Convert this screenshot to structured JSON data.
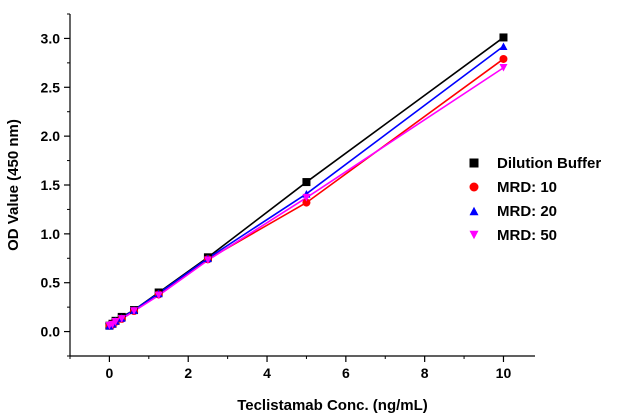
{
  "chart_data": {
    "type": "scatter",
    "title": "",
    "xlabel": "Teclistamab Conc. (ng/mL)",
    "ylabel": "OD Value (450 nm)",
    "xlim": [
      -1,
      10.8
    ],
    "ylim": [
      -0.25,
      3.25
    ],
    "xticks": [
      0,
      2,
      4,
      6,
      8,
      10
    ],
    "xtick_labels": [
      "0",
      "2",
      "4",
      "6",
      "8",
      "10"
    ],
    "yticks": [
      0.0,
      0.5,
      1.0,
      1.5,
      2.0,
      2.5,
      3.0
    ],
    "ytick_labels": [
      "0.0",
      "0.5",
      "1.0",
      "1.5",
      "2.0",
      "2.5",
      "3.0"
    ],
    "grid": false,
    "legend_position": "right",
    "series": [
      {
        "name": "Dilution Buffer",
        "marker": "square",
        "color": "#000000",
        "x": [
          0,
          0.078,
          0.156,
          0.3125,
          0.625,
          1.25,
          2.5,
          5,
          10
        ],
        "y": [
          0.06,
          0.08,
          0.11,
          0.15,
          0.22,
          0.4,
          0.76,
          1.53,
          3.01
        ]
      },
      {
        "name": "MRD: 10",
        "marker": "circle",
        "color": "#ff0000",
        "x": [
          0,
          0.078,
          0.156,
          0.3125,
          0.625,
          1.25,
          2.5,
          5,
          10
        ],
        "y": [
          0.06,
          0.07,
          0.1,
          0.13,
          0.21,
          0.38,
          0.74,
          1.32,
          2.79
        ]
      },
      {
        "name": "MRD: 20",
        "marker": "triangle-up",
        "color": "#0000ff",
        "x": [
          0,
          0.078,
          0.156,
          0.3125,
          0.625,
          1.25,
          2.5,
          5,
          10
        ],
        "y": [
          0.06,
          0.08,
          0.11,
          0.14,
          0.22,
          0.39,
          0.75,
          1.41,
          2.92
        ]
      },
      {
        "name": "MRD: 50",
        "marker": "triangle-down",
        "color": "#ff00ff",
        "x": [
          0,
          0.078,
          0.156,
          0.3125,
          0.625,
          1.25,
          2.5,
          5,
          10
        ],
        "y": [
          0.06,
          0.07,
          0.1,
          0.13,
          0.21,
          0.37,
          0.73,
          1.37,
          2.7
        ]
      }
    ]
  }
}
